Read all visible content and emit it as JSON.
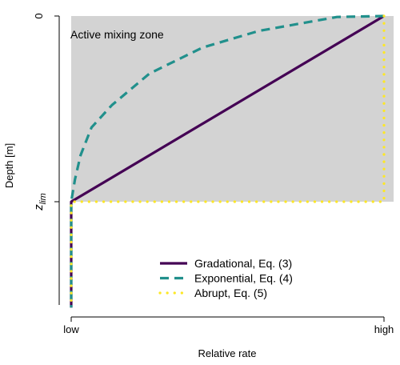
{
  "chart_data": {
    "type": "line",
    "title": "",
    "xlabel": "Relative rate",
    "ylabel": "Depth [m]",
    "x_ticks": [
      "low",
      "high"
    ],
    "y_ticks": {
      "top": "0",
      "bottom_main": "z",
      "bottom_sub": "lim"
    },
    "annotation": "Active mixing zone",
    "shaded_region": {
      "label": "Active mixing zone",
      "x": [
        0,
        1
      ],
      "depth": [
        0,
        1
      ],
      "color": "#d3d3d3"
    },
    "depth_range": [
      0,
      1.57
    ],
    "rate_range": [
      0,
      1
    ],
    "grid": false,
    "legend_position": "bottom-right",
    "series": [
      {
        "name": "Gradational, Eq. (3)",
        "color": "#440154",
        "style": "solid",
        "points": [
          [
            1,
            0
          ],
          [
            0,
            1
          ],
          [
            0,
            1.57
          ]
        ]
      },
      {
        "name": "Exponential, Eq. (4)",
        "color": "#21908c",
        "style": "dashed",
        "points": [
          [
            1,
            0
          ],
          [
            0.85,
            0.005
          ],
          [
            0.6,
            0.08
          ],
          [
            0.42,
            0.17
          ],
          [
            0.25,
            0.31
          ],
          [
            0.13,
            0.48
          ],
          [
            0.065,
            0.6
          ],
          [
            0.03,
            0.75
          ],
          [
            0.012,
            0.88
          ],
          [
            0,
            1
          ],
          [
            0,
            1.57
          ]
        ]
      },
      {
        "name": "Abrupt, Eq. (5)",
        "color": "#fde725",
        "style": "dotted",
        "points": [
          [
            1,
            0
          ],
          [
            1,
            1
          ],
          [
            0,
            1
          ],
          [
            0,
            1.57
          ]
        ]
      }
    ]
  }
}
